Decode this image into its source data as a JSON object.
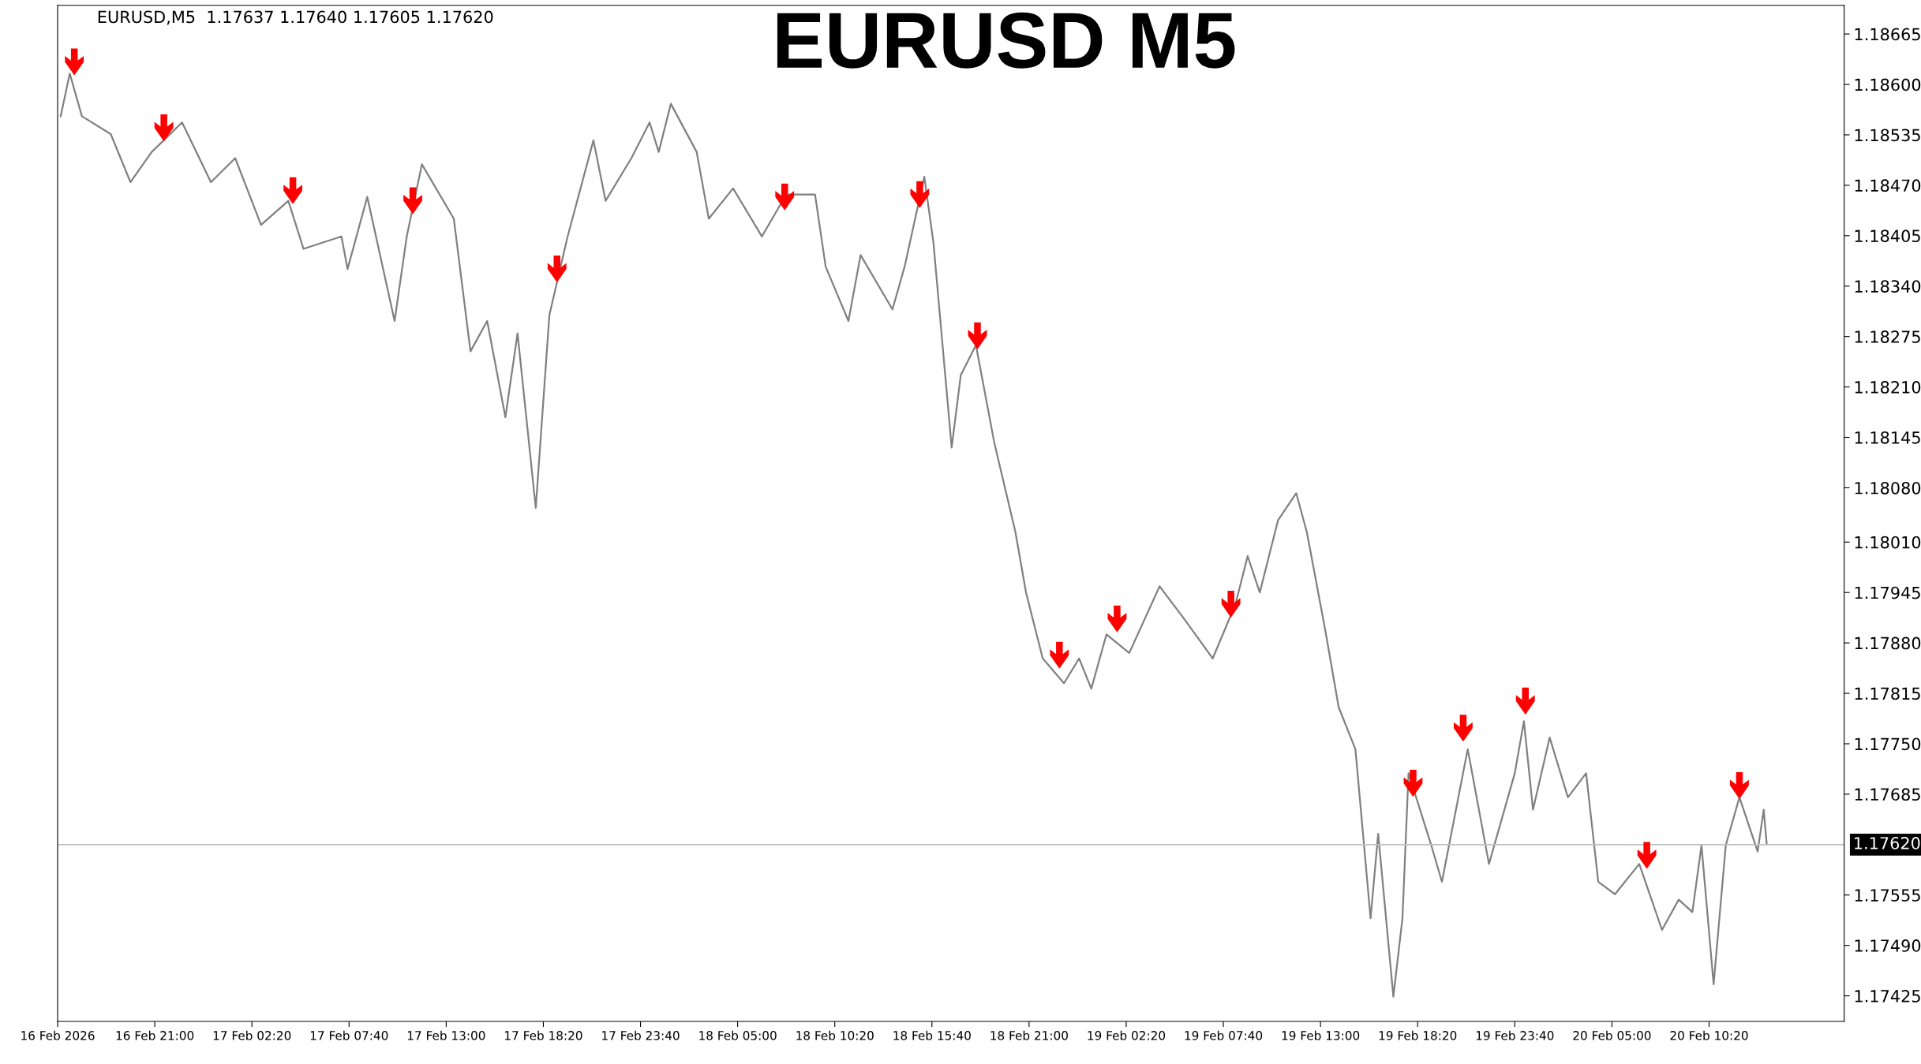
{
  "chart_data": {
    "type": "line",
    "title": "EURUSD M5",
    "annotations": [
      "EURUSD,M5  1.17637 1.17640 1.17605 1.17620"
    ],
    "series": [
      {
        "color": "#808080",
        "x": [
          "2026-02-16T15:50",
          "2026-02-16T16:20",
          "2026-02-16T17:00",
          "2026-02-16T18:35",
          "2026-02-16T19:40",
          "2026-02-16T20:50",
          "2026-02-16T22:30",
          "2026-02-17T00:05",
          "2026-02-17T01:25",
          "2026-02-17T02:50",
          "2026-02-17T04:20",
          "2026-02-17T05:10",
          "2026-02-17T07:15",
          "2026-02-17T07:35",
          "2026-02-17T08:40",
          "2026-02-17T10:10",
          "2026-02-17T10:50",
          "2026-02-17T11:40",
          "2026-02-17T13:25",
          "2026-02-17T14:20",
          "2026-02-17T15:15",
          "2026-02-17T16:15",
          "2026-02-17T16:55",
          "2026-02-17T17:55",
          "2026-02-17T18:40",
          "2026-02-17T19:40",
          "2026-02-17T21:05",
          "2026-02-17T21:45",
          "2026-02-17T23:10",
          "2026-02-18T00:10",
          "2026-02-18T00:40",
          "2026-02-18T01:20",
          "2026-02-18T02:45",
          "2026-02-18T03:25",
          "2026-02-18T04:45",
          "2026-02-18T06:20",
          "2026-02-18T07:40",
          "2026-02-18T09:15",
          "2026-02-18T09:50",
          "2026-02-18T11:05",
          "2026-02-18T11:45",
          "2026-02-18T13:30",
          "2026-02-18T14:10",
          "2026-02-18T15:15",
          "2026-02-18T15:45",
          "2026-02-18T16:45",
          "2026-02-18T17:15",
          "2026-02-18T18:05",
          "2026-02-18T19:05",
          "2026-02-18T20:15",
          "2026-02-18T20:50",
          "2026-02-18T21:45",
          "2026-02-18T22:55",
          "2026-02-18T23:45",
          "2026-02-19T00:25",
          "2026-02-19T01:15",
          "2026-02-19T02:30",
          "2026-02-19T04:10",
          "2026-02-19T05:25",
          "2026-02-19T07:05",
          "2026-02-19T08:20",
          "2026-02-19T09:00",
          "2026-02-19T09:40",
          "2026-02-19T10:40",
          "2026-02-19T11:40",
          "2026-02-19T12:15",
          "2026-02-19T13:15",
          "2026-02-19T14:00",
          "2026-02-19T14:55",
          "2026-02-19T15:45",
          "2026-02-19T16:10",
          "2026-02-19T17:00",
          "2026-02-19T17:30",
          "2026-02-19T17:50",
          "2026-02-19T19:05",
          "2026-02-19T19:40",
          "2026-02-19T21:05",
          "2026-02-19T22:15",
          "2026-02-19T23:40",
          "2026-02-20T00:10",
          "2026-02-20T00:40",
          "2026-02-20T01:35",
          "2026-02-20T02:35",
          "2026-02-20T03:35",
          "2026-02-20T04:15",
          "2026-02-20T05:10",
          "2026-02-20T06:30",
          "2026-02-20T07:45",
          "2026-02-20T08:40",
          "2026-02-20T09:25",
          "2026-02-20T09:55",
          "2026-02-20T10:35",
          "2026-02-20T11:15",
          "2026-02-20T12:00",
          "2026-02-20T13:00",
          "2026-02-20T13:20",
          "2026-02-20T13:30"
        ],
        "values": [
          1.18559,
          1.18614,
          1.18559,
          1.18536,
          1.18474,
          1.18513,
          1.18551,
          1.18474,
          1.18505,
          1.18419,
          1.1845,
          1.18388,
          1.18404,
          1.18362,
          1.18455,
          1.18295,
          1.18404,
          1.18497,
          1.18427,
          1.18256,
          1.18295,
          1.18171,
          1.18279,
          1.18054,
          1.18303,
          1.18404,
          1.18528,
          1.1845,
          1.18505,
          1.18551,
          1.18513,
          1.18575,
          1.18513,
          1.18427,
          1.18466,
          1.18404,
          1.18458,
          1.18458,
          1.18365,
          1.18295,
          1.1838,
          1.1831,
          1.18365,
          1.18481,
          1.18396,
          1.18132,
          1.18225,
          1.18264,
          1.18139,
          1.18023,
          1.17945,
          1.1786,
          1.17828,
          1.1786,
          1.17821,
          1.17891,
          1.17867,
          1.17953,
          1.17914,
          1.1786,
          1.1793,
          1.17992,
          1.17945,
          1.18038,
          1.18073,
          1.18023,
          1.17898,
          1.17797,
          1.17743,
          1.17525,
          1.17634,
          1.17424,
          1.17525,
          1.17712,
          1.17619,
          1.17572,
          1.17743,
          1.17595,
          1.17712,
          1.17779,
          1.17665,
          1.17758,
          1.17681,
          1.17712,
          1.17572,
          1.17556,
          1.17595,
          1.1751,
          1.17549,
          1.17533,
          1.17619,
          1.1744,
          1.17619,
          1.17681,
          1.17611,
          1.17665,
          1.1762
        ]
      },
      {
        "type": "scatter",
        "color": "#ff0000",
        "x": [
          "2026-02-16T16:35",
          "2026-02-16T21:30",
          "2026-02-17T04:35",
          "2026-02-17T11:10",
          "2026-02-17T19:05",
          "2026-02-18T07:35",
          "2026-02-18T15:00",
          "2026-02-18T18:10",
          "2026-02-18T22:40",
          "2026-02-19T01:50",
          "2026-02-19T08:05",
          "2026-02-19T18:05",
          "2026-02-19T20:50",
          "2026-02-20T00:15",
          "2026-02-20T06:55",
          "2026-02-20T12:00"
        ],
        "values": [
          1.18629,
          1.18544,
          1.18463,
          1.1845,
          1.18362,
          1.18455,
          1.18458,
          1.18276,
          1.17864,
          1.17911,
          1.1793,
          1.17699,
          1.1777,
          1.17805,
          1.17606,
          1.17696
        ]
      }
    ],
    "xlim": [
      "2026-02-16T15:40",
      "2026-02-20T17:45"
    ],
    "xticks": [
      {
        "value": "2026-02-16T15:40",
        "label": "16 Feb 2026"
      },
      {
        "value": "2026-02-16T21:00",
        "label": "16 Feb 21:00"
      },
      {
        "value": "2026-02-17T02:20",
        "label": "17 Feb 02:20"
      },
      {
        "value": "2026-02-17T07:40",
        "label": "17 Feb 07:40"
      },
      {
        "value": "2026-02-17T13:00",
        "label": "17 Feb 13:00"
      },
      {
        "value": "2026-02-17T18:20",
        "label": "17 Feb 18:20"
      },
      {
        "value": "2026-02-17T23:40",
        "label": "17 Feb 23:40"
      },
      {
        "value": "2026-02-18T05:00",
        "label": "18 Feb 05:00"
      },
      {
        "value": "2026-02-18T10:20",
        "label": "18 Feb 10:20"
      },
      {
        "value": "2026-02-18T15:40",
        "label": "18 Feb 15:40"
      },
      {
        "value": "2026-02-18T21:00",
        "label": "18 Feb 21:00"
      },
      {
        "value": "2026-02-19T02:20",
        "label": "19 Feb 02:20"
      },
      {
        "value": "2026-02-19T07:40",
        "label": "19 Feb 07:40"
      },
      {
        "value": "2026-02-19T13:00",
        "label": "19 Feb 13:00"
      },
      {
        "value": "2026-02-19T18:20",
        "label": "19 Feb 18:20"
      },
      {
        "value": "2026-02-19T23:40",
        "label": "19 Feb 23:40"
      },
      {
        "value": "2026-02-20T05:00",
        "label": "20 Feb 05:00"
      },
      {
        "value": "2026-02-20T10:20",
        "label": "20 Feb 10:20"
      }
    ],
    "ylim": [
      1.17392,
      1.18702
    ],
    "yticks": [
      {
        "value": 1.18665,
        "label": "1.18665"
      },
      {
        "value": 1.186,
        "label": "1.18600"
      },
      {
        "value": 1.18535,
        "label": "1.18535"
      },
      {
        "value": 1.1847,
        "label": "1.18470"
      },
      {
        "value": 1.18405,
        "label": "1.18405"
      },
      {
        "value": 1.1834,
        "label": "1.18340"
      },
      {
        "value": 1.18275,
        "label": "1.18275"
      },
      {
        "value": 1.1821,
        "label": "1.18210"
      },
      {
        "value": 1.18145,
        "label": "1.18145"
      },
      {
        "value": 1.1808,
        "label": "1.18080"
      },
      {
        "value": 1.1801,
        "label": "1.18010"
      },
      {
        "value": 1.17945,
        "label": "1.17945"
      },
      {
        "value": 1.1788,
        "label": "1.17880"
      },
      {
        "value": 1.17815,
        "label": "1.17815"
      },
      {
        "value": 1.1775,
        "label": "1.17750"
      },
      {
        "value": 1.17685,
        "label": "1.17685"
      },
      {
        "value": 1.17555,
        "label": "1.17555"
      },
      {
        "value": 1.1749,
        "label": "1.17490"
      },
      {
        "value": 1.17425,
        "label": "1.17425"
      }
    ],
    "ref_lines": [
      {
        "axis": "y",
        "value": 1.1762,
        "label": "1.17620",
        "color": "#c0c0c0"
      }
    ],
    "grid": false
  }
}
